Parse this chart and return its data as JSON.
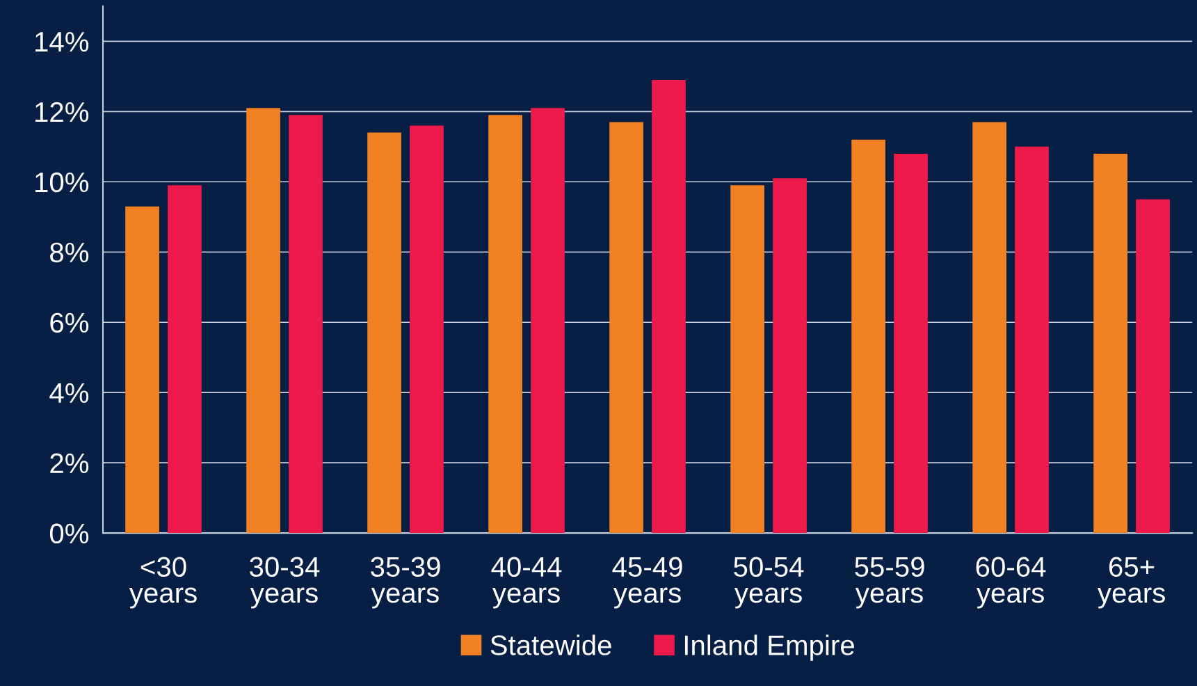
{
  "chart_data": {
    "type": "bar",
    "categories": [
      "<30\nyears",
      "30-34\nyears",
      "35-39\nyears",
      "40-44\nyears",
      "45-49\nyears",
      "50-54\nyears",
      "55-59\nyears",
      "60-64\nyears",
      "65+\nyears"
    ],
    "series": [
      {
        "name": "Statewide",
        "color": "#f28123",
        "values": [
          9.3,
          12.1,
          11.4,
          11.9,
          11.7,
          9.9,
          11.2,
          11.7,
          10.8
        ]
      },
      {
        "name": "Inland Empire",
        "color": "#ed1a4b",
        "values": [
          9.9,
          11.9,
          11.6,
          12.1,
          12.9,
          10.1,
          10.8,
          11.0,
          9.5
        ]
      }
    ],
    "ylim": [
      0,
      15
    ],
    "yticks": [
      {
        "value": 0,
        "label": "0%"
      },
      {
        "value": 2,
        "label": "2%"
      },
      {
        "value": 4,
        "label": "4%"
      },
      {
        "value": 6,
        "label": "6%"
      },
      {
        "value": 8,
        "label": "8%"
      },
      {
        "value": 10,
        "label": "10%"
      },
      {
        "value": 12,
        "label": "12%"
      },
      {
        "value": 14,
        "label": "14%"
      }
    ],
    "grid": "y",
    "legend": "bottom"
  }
}
